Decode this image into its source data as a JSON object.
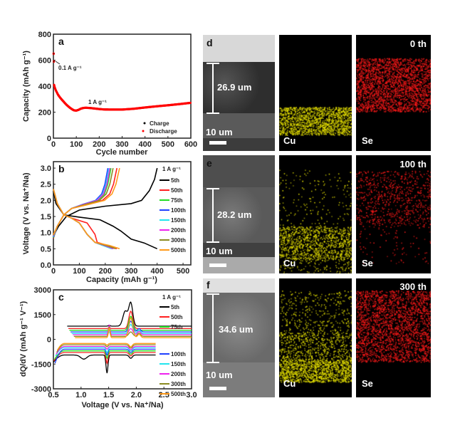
{
  "figure": {
    "panels": {
      "d": {
        "label": "d",
        "thickness": "26.9 um",
        "scale": "10 um",
        "cu_label": "Cu",
        "se_label": "Se",
        "cycle": "0 th"
      },
      "e": {
        "label": "e",
        "thickness": "28.2 um",
        "scale": "10 um",
        "cu_label": "Cu",
        "se_label": "Se",
        "cycle": "100 th"
      },
      "f": {
        "label": "f",
        "thickness": "34.6 um",
        "scale": "10 um",
        "cu_label": "Cu",
        "se_label": "Se",
        "cycle": "300 th"
      }
    },
    "colors": {
      "cu_map": "#e5e000",
      "se_map": "#ff1a1a",
      "sem_bg": "#6c6c6c"
    }
  },
  "chart_data": [
    {
      "type": "scatter",
      "panel": "a",
      "title": "",
      "xlabel": "Cycle number",
      "ylabel": "Capacity (mAh g⁻¹)",
      "xlim": [
        0,
        600
      ],
      "ylim": [
        0,
        800
      ],
      "xticks": [
        "0",
        "100",
        "200",
        "300",
        "400",
        "500",
        "600"
      ],
      "yticks": [
        "0",
        "200",
        "400",
        "600",
        "800"
      ],
      "annotations": [
        {
          "text": "0.1 A g⁻¹"
        },
        {
          "text": "1 A g⁻¹"
        }
      ],
      "legend": {
        "placement": "bottom-right",
        "entries": [
          "Charge",
          "Discharge"
        ]
      },
      "series": [
        {
          "name": "Charge",
          "color": "#000000",
          "x": [
            1,
            2
          ],
          "y": [
            650,
            590
          ]
        },
        {
          "name": "Discharge",
          "color": "#ff0000",
          "x": [
            1,
            2,
            3,
            5,
            10,
            20,
            30,
            40,
            50,
            60,
            70,
            80,
            90,
            100,
            110,
            120,
            130,
            140,
            150,
            160,
            180,
            200,
            220,
            250,
            300,
            350,
            400,
            450,
            500,
            550,
            600
          ],
          "y": [
            650,
            590,
            410,
            395,
            370,
            335,
            310,
            290,
            270,
            252,
            237,
            224,
            214,
            212,
            218,
            227,
            232,
            234,
            233,
            232,
            228,
            224,
            221,
            220,
            220,
            226,
            236,
            245,
            253,
            262,
            272
          ]
        }
      ]
    },
    {
      "type": "line",
      "panel": "b",
      "xlabel": "Capacity (mAh g⁻¹)",
      "ylabel": "Voltage (V vs. Na⁺/Na)",
      "xlim": [
        0,
        530
      ],
      "ylim": [
        0,
        3.2
      ],
      "xticks": [
        "0",
        "100",
        "200",
        "300",
        "400",
        "500"
      ],
      "yticks": [
        "0.0",
        "0.5",
        "1.0",
        "1.5",
        "2.0",
        "2.5",
        "3.0"
      ],
      "legend": {
        "placement": "right",
        "title": "1 A g⁻¹"
      },
      "series": [
        {
          "name": "5th",
          "color": "#000000",
          "charge_end": 400,
          "discharge_end": 400
        },
        {
          "name": "50th",
          "color": "#ff2020",
          "charge_end": 245,
          "discharge_end": 245
        },
        {
          "name": "75th",
          "color": "#22dd22",
          "charge_end": 222,
          "discharge_end": 225
        },
        {
          "name": "100th",
          "color": "#2040ff",
          "charge_end": 210,
          "discharge_end": 230
        },
        {
          "name": "150th",
          "color": "#22e5ee",
          "charge_end": 215,
          "discharge_end": 225
        },
        {
          "name": "200th",
          "color": "#ee22ee",
          "charge_end": 218,
          "discharge_end": 232
        },
        {
          "name": "300th",
          "color": "#8a8a20",
          "charge_end": 230,
          "discharge_end": 240
        },
        {
          "name": "500th",
          "color": "#ff9a1a",
          "charge_end": 255,
          "discharge_end": 255
        }
      ]
    },
    {
      "type": "line",
      "panel": "c",
      "xlabel": "Voltage (V vs. Na⁺/Na)",
      "ylabel": "dQ/dV (mAh g⁻¹ V⁻¹)",
      "xlim": [
        0.5,
        3.0
      ],
      "ylim": [
        -3000,
        3000
      ],
      "xticks": [
        "0.5",
        "1.0",
        "1.5",
        "2.0",
        "2.5",
        "3.0"
      ],
      "yticks": [
        "-3000",
        "-1500",
        "0",
        "1500",
        "3000"
      ],
      "legend": {
        "placement": "right",
        "title": "1 A g⁻¹"
      },
      "series": [
        {
          "name": "5th",
          "color": "#000000",
          "offset": 800,
          "anodic_peak": 2200,
          "cathodic_peak": -2050
        },
        {
          "name": "50th",
          "color": "#ff2020",
          "offset": 650,
          "anodic_peak": 1700,
          "cathodic_peak": -1450
        },
        {
          "name": "75th",
          "color": "#22dd22",
          "offset": 550,
          "anodic_peak": 1400,
          "cathodic_peak": -1150
        },
        {
          "name": "100th",
          "color": "#2040ff",
          "offset": 450,
          "anodic_peak": 1100,
          "cathodic_peak": -950
        },
        {
          "name": "150th",
          "color": "#22e5ee",
          "offset": 350,
          "anodic_peak": 900,
          "cathodic_peak": -800
        },
        {
          "name": "200th",
          "color": "#ee22ee",
          "offset": 280,
          "anodic_peak": 650,
          "cathodic_peak": -600
        },
        {
          "name": "300th",
          "color": "#8a8a20",
          "offset": 180,
          "anodic_peak": 450,
          "cathodic_peak": -450
        },
        {
          "name": "500th",
          "color": "#ff9a1a",
          "offset": 100,
          "anodic_peak": 1300,
          "cathodic_peak": -350
        }
      ]
    }
  ]
}
